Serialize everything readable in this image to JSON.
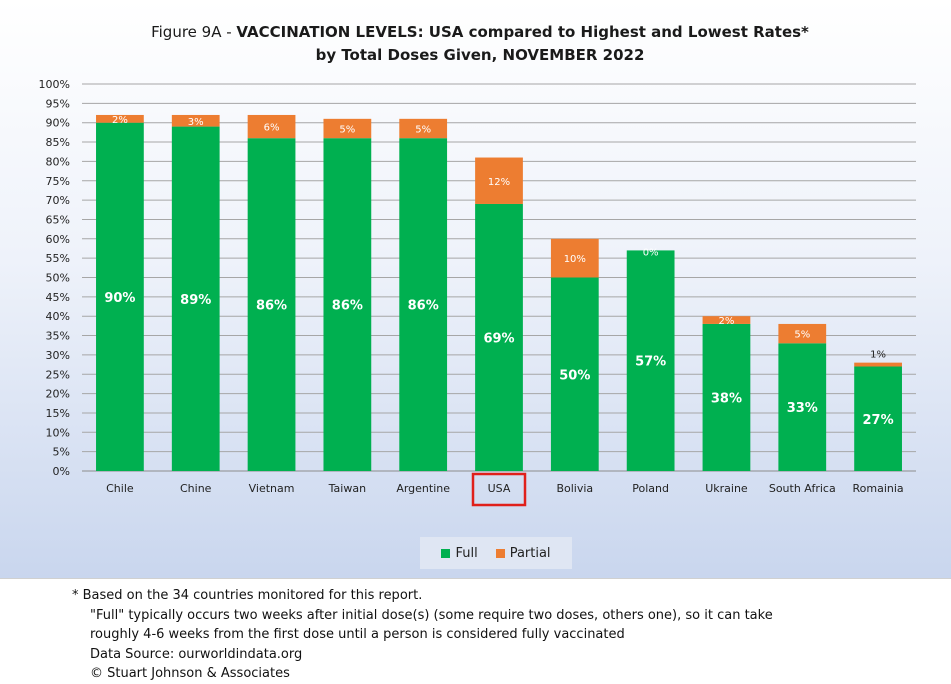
{
  "title": {
    "line1_prefix": "Figure 9A - ",
    "line1_bold": "VACCINATION LEVELS:  USA compared to Highest and Lowest Rates*",
    "line2": "by Total Doses Given, NOVEMBER 2022"
  },
  "chart_data": {
    "type": "bar",
    "stacked": true,
    "categories": [
      "Chile",
      "Chine",
      "Vietnam",
      "Taiwan",
      "Argentine",
      "USA",
      "Bolivia",
      "Poland",
      "Ukraine",
      "South Africa",
      "Romainia"
    ],
    "highlighted_category": "USA",
    "series": [
      {
        "name": "Full",
        "color": "#00b050",
        "values": [
          90,
          89,
          86,
          86,
          86,
          69,
          50,
          57,
          38,
          33,
          27
        ],
        "labels": [
          "90%",
          "89%",
          "86%",
          "86%",
          "86%",
          "69%",
          "50%",
          "57%",
          "38%",
          "33%",
          "27%"
        ]
      },
      {
        "name": "Partial",
        "color": "#ed7d31",
        "values": [
          2,
          3,
          6,
          5,
          5,
          12,
          10,
          0,
          2,
          5,
          1
        ],
        "labels": [
          "2%",
          "3%",
          "6%",
          "5%",
          "5%",
          "12%",
          "10%",
          "0%",
          "2%",
          "5%",
          "1%"
        ]
      }
    ],
    "ylim": [
      0,
      100
    ],
    "ytick_step": 5,
    "ytick_labels": [
      "0%",
      "5%",
      "10%",
      "15%",
      "20%",
      "25%",
      "30%",
      "35%",
      "40%",
      "45%",
      "50%",
      "55%",
      "60%",
      "65%",
      "70%",
      "75%",
      "80%",
      "85%",
      "90%",
      "95%",
      "100%"
    ],
    "grid": true,
    "legend_position": "bottom"
  },
  "highlight_color": "#e0201b",
  "footnotes": {
    "star": "*",
    "line1": "Based on the 34 countries monitored for this report.",
    "line2": "\"Full\" typically occurs two weeks after initial dose(s) (some require two doses, others one),  so it can take",
    "line3": "roughly 4-6 weeks from the first dose until a person is considered fully vaccinated",
    "line4": "Data Source:  ourworldindata.org",
    "line5": "© Stuart Johnson & Associates"
  }
}
